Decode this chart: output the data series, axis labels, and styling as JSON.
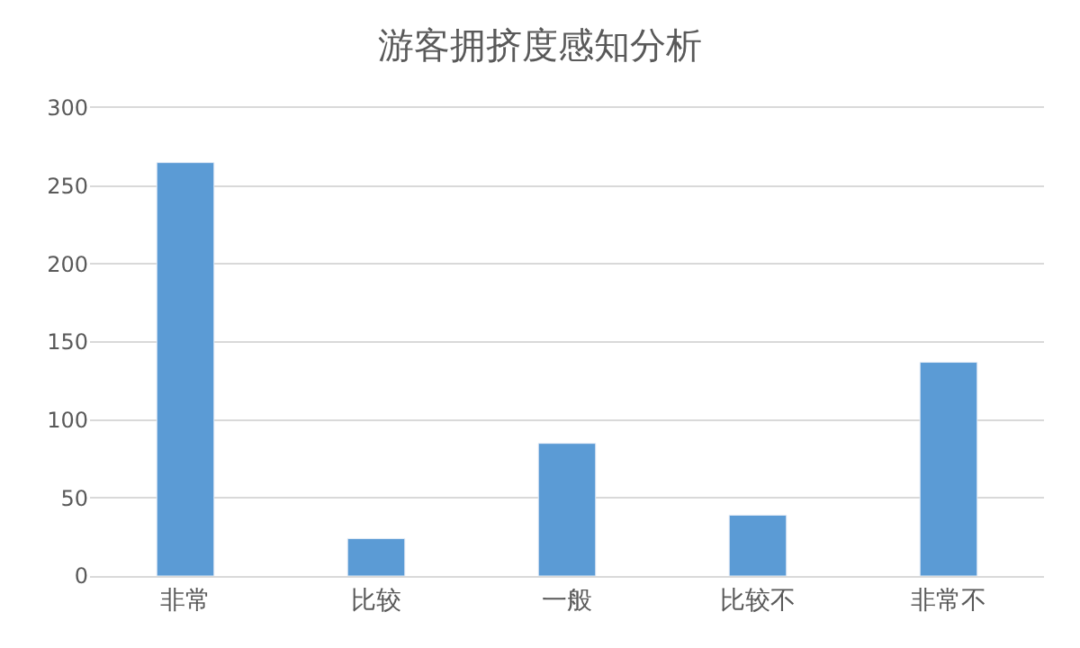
{
  "chart_data": {
    "type": "bar",
    "title": "游客拥挤度感知分析",
    "categories": [
      "非常",
      "比较",
      "一般",
      "比较不",
      "非常不"
    ],
    "values": [
      265,
      24,
      85,
      39,
      137
    ],
    "color": "#5b9bd5",
    "ylim": [
      0,
      300
    ],
    "yticks": [
      0,
      50,
      100,
      150,
      200,
      250,
      300
    ],
    "grid": "y"
  }
}
